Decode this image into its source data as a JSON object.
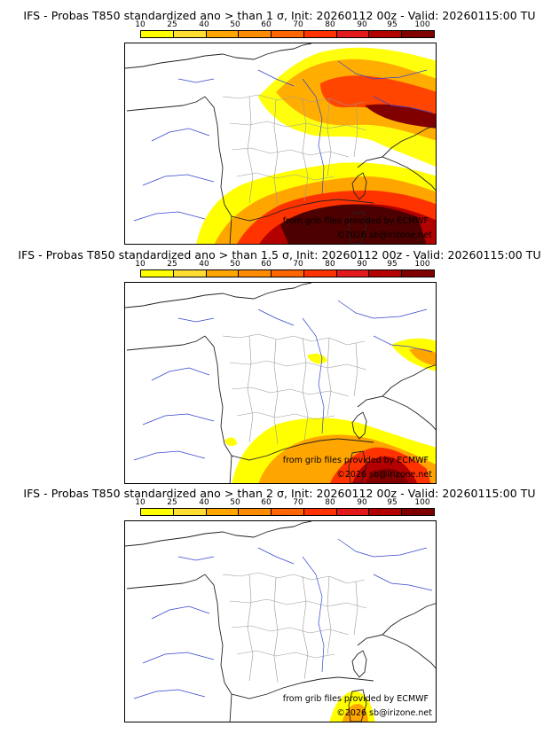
{
  "colors": {
    "scale": [
      "#ffff00",
      "#ffdd33",
      "#ffa500",
      "#ff8c00",
      "#ff6600",
      "#ff3300",
      "#e31a1c",
      "#b30000",
      "#800000",
      "#4d0000"
    ]
  },
  "colorbar": {
    "ticks": [
      "10",
      "25",
      "40",
      "50",
      "60",
      "70",
      "80",
      "90",
      "95",
      "100"
    ]
  },
  "panels": [
    {
      "title": "IFS - Probas T850  standardized ano > than 1 σ, Init: 20260112 00z - Valid: 20260115:00 TU",
      "credit_source": "from grib files provided by ECMWF",
      "credit_site": "©2026 sb@irizone.net"
    },
    {
      "title": "IFS - Probas T850  standardized ano > than 1.5 σ, Init: 20260112 00z - Valid: 20260115:00 TU",
      "credit_source": "from grib files provided by ECMWF",
      "credit_site": "©2026 sb@irizone.net"
    },
    {
      "title": "IFS - Probas T850  standardized ano > than 2 σ, Init: 20260112 00z - Valid: 20260115:00 TU",
      "credit_source": "from grib files provided by ECMWF",
      "credit_site": "©2026 sb@irizone.net"
    }
  ]
}
